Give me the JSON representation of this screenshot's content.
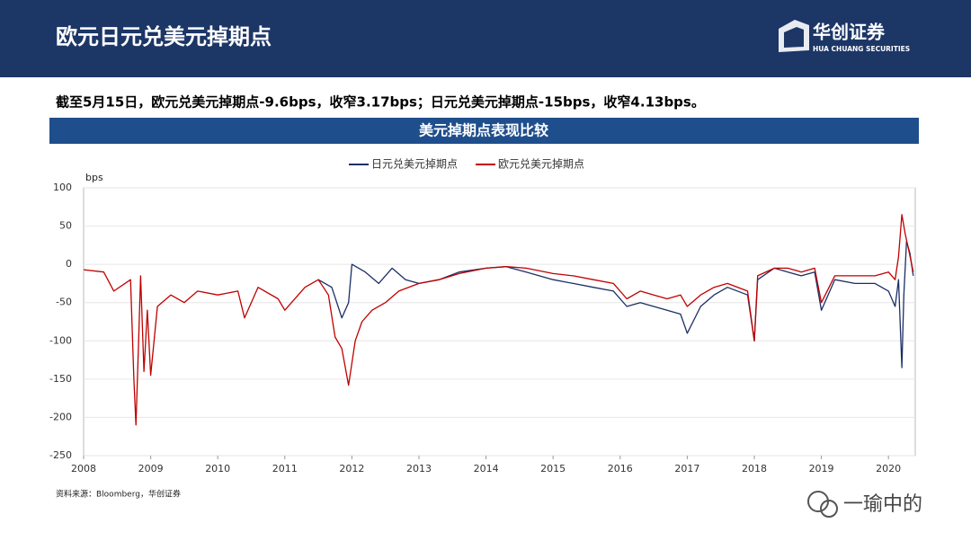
{
  "header": {
    "title": "欧元日元兑美元掉期点",
    "logo_name": "华创证券",
    "logo_sub": "HUA CHUANG SECURITIES"
  },
  "summary": "截至5月15日，欧元兑美元掉期点-9.6bps，收窄3.17bps；日元兑美元掉期点-15bps，收窄4.13bps。",
  "banner": "美元掉期点表现比较",
  "source": "资料来源：Bloomberg，华创证券",
  "watermark": "一瑜中的",
  "chart_data": {
    "type": "line",
    "y_unit": "bps",
    "xlim": [
      2008,
      2020.4
    ],
    "xticks": [
      2008,
      2009,
      2010,
      2011,
      2012,
      2013,
      2014,
      2015,
      2016,
      2017,
      2018,
      2019,
      2020
    ],
    "ylim": [
      -250,
      100
    ],
    "yticks": [
      -250,
      -200,
      -150,
      -100,
      -50,
      0,
      50,
      100
    ],
    "grid": true,
    "series": [
      {
        "name": "日元兑美元掉期点",
        "color": "#1b2f66",
        "x": [
          2011.5,
          2011.7,
          2011.85,
          2011.95,
          2012.0,
          2012.2,
          2012.4,
          2012.6,
          2012.8,
          2013.0,
          2013.3,
          2013.6,
          2014.0,
          2014.3,
          2014.6,
          2015.0,
          2015.3,
          2015.6,
          2015.9,
          2016.1,
          2016.3,
          2016.5,
          2016.7,
          2016.9,
          2017.0,
          2017.2,
          2017.4,
          2017.6,
          2017.9,
          2018.0,
          2018.05,
          2018.3,
          2018.5,
          2018.7,
          2018.9,
          2019.0,
          2019.2,
          2019.5,
          2019.8,
          2020.0,
          2020.1,
          2020.15,
          2020.2,
          2020.23,
          2020.27,
          2020.32,
          2020.37
        ],
        "values": [
          -20,
          -30,
          -70,
          -50,
          0,
          -10,
          -25,
          -5,
          -20,
          -25,
          -20,
          -10,
          -5,
          -3,
          -10,
          -20,
          -25,
          -30,
          -35,
          -55,
          -50,
          -55,
          -60,
          -65,
          -90,
          -55,
          -40,
          -30,
          -40,
          -100,
          -20,
          -5,
          -10,
          -15,
          -10,
          -60,
          -20,
          -25,
          -25,
          -35,
          -55,
          -20,
          -135,
          -40,
          30,
          15,
          -15
        ]
      },
      {
        "name": "欧元兑美元掉期点",
        "color": "#c00000",
        "x": [
          2008.0,
          2008.3,
          2008.45,
          2008.7,
          2008.75,
          2008.78,
          2008.82,
          2008.85,
          2008.9,
          2008.95,
          2009.0,
          2009.1,
          2009.3,
          2009.5,
          2009.7,
          2010.0,
          2010.3,
          2010.4,
          2010.6,
          2010.9,
          2011.0,
          2011.3,
          2011.5,
          2011.65,
          2011.75,
          2011.85,
          2011.95,
          2012.05,
          2012.15,
          2012.3,
          2012.5,
          2012.7,
          2013.0,
          2013.3,
          2013.6,
          2014.0,
          2014.3,
          2014.6,
          2015.0,
          2015.3,
          2015.6,
          2015.9,
          2016.1,
          2016.3,
          2016.5,
          2016.7,
          2016.9,
          2017.0,
          2017.2,
          2017.4,
          2017.6,
          2017.9,
          2018.0,
          2018.05,
          2018.3,
          2018.5,
          2018.7,
          2018.9,
          2019.0,
          2019.2,
          2019.5,
          2019.8,
          2020.0,
          2020.1,
          2020.15,
          2020.2,
          2020.25,
          2020.3,
          2020.37
        ],
        "values": [
          -7,
          -10,
          -35,
          -20,
          -150,
          -210,
          -100,
          -15,
          -140,
          -60,
          -145,
          -55,
          -40,
          -50,
          -35,
          -40,
          -35,
          -70,
          -30,
          -45,
          -60,
          -30,
          -20,
          -40,
          -95,
          -110,
          -158,
          -100,
          -75,
          -60,
          -50,
          -35,
          -25,
          -20,
          -12,
          -5,
          -3,
          -5,
          -12,
          -15,
          -20,
          -25,
          -45,
          -35,
          -40,
          -45,
          -40,
          -55,
          -40,
          -30,
          -25,
          -35,
          -100,
          -15,
          -5,
          -5,
          -10,
          -5,
          -50,
          -15,
          -15,
          -15,
          -10,
          -20,
          10,
          65,
          40,
          20,
          -10
        ]
      }
    ]
  }
}
